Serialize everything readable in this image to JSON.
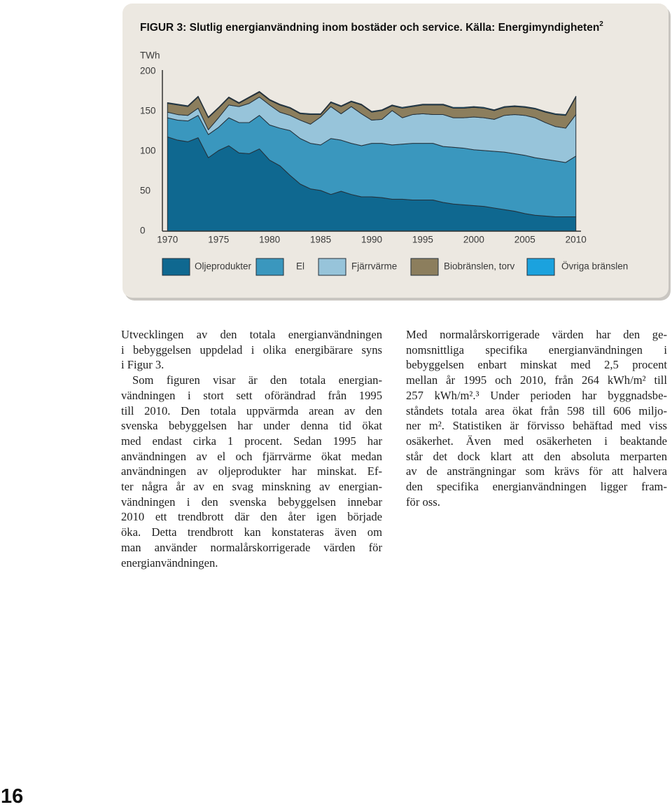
{
  "chart_data": {
    "type": "stacked-area",
    "title": "FIGUR 3: Slutlig energianvändning inom bostäder och service. Källa: Energimyndigheten",
    "title_ref": "2",
    "y_label": "TWh",
    "x": [
      1970,
      1971,
      1972,
      1973,
      1974,
      1975,
      1976,
      1977,
      1978,
      1979,
      1980,
      1981,
      1982,
      1983,
      1984,
      1985,
      1986,
      1987,
      1988,
      1989,
      1990,
      1991,
      1992,
      1993,
      1994,
      1995,
      1996,
      1997,
      1998,
      1999,
      2000,
      2001,
      2002,
      2003,
      2004,
      2005,
      2006,
      2007,
      2008,
      2009,
      2010
    ],
    "xlim": [
      1969.5,
      2010.5
    ],
    "xticks": [
      1970,
      1975,
      1980,
      1985,
      1990,
      1995,
      2000,
      2005,
      2010
    ],
    "ylim": [
      0,
      200
    ],
    "yticks": [
      0,
      50,
      100,
      150,
      200
    ],
    "legend": "bottom",
    "series": [
      {
        "name": "Oljeprodukter",
        "color": "#0f6890",
        "values": [
          118,
          114,
          112,
          117,
          92,
          101,
          107,
          98,
          97,
          103,
          89,
          82,
          70,
          59,
          53,
          51,
          46,
          50,
          46,
          43,
          43,
          42,
          40,
          40,
          39,
          39,
          39,
          36,
          34,
          33,
          32,
          31,
          29,
          27,
          25,
          22,
          20,
          19,
          18,
          18,
          18
        ]
      },
      {
        "name": "El",
        "color": "#3a97be",
        "values": [
          24,
          25,
          26,
          28,
          29,
          29,
          35,
          38,
          39,
          42,
          44,
          47,
          56,
          57,
          57,
          57,
          70,
          64,
          64,
          64,
          67,
          68,
          68,
          69,
          71,
          71,
          71,
          70,
          71,
          71,
          70,
          70,
          71,
          72,
          72,
          73,
          72,
          71,
          70,
          68,
          76
        ]
      },
      {
        "name": "Fjärrvärme",
        "color": "#97c4da",
        "values": [
          7,
          7,
          7,
          9,
          6,
          12,
          16,
          20,
          24,
          23,
          25,
          20,
          19,
          23,
          24,
          35,
          40,
          33,
          46,
          40,
          29,
          30,
          43,
          33,
          36,
          37,
          36,
          40,
          37,
          38,
          41,
          41,
          40,
          46,
          49,
          50,
          50,
          46,
          43,
          43,
          52
        ]
      },
      {
        "name": "Biobränslen, torv",
        "color": "#8c7e5d",
        "values": [
          11,
          12,
          11,
          14,
          15,
          12,
          9,
          4,
          7,
          6,
          6,
          9,
          9,
          8,
          12,
          3,
          5,
          9,
          6,
          11,
          10,
          11,
          6,
          12,
          10,
          11,
          12,
          12,
          12,
          12,
          12,
          12,
          11,
          10,
          10,
          10,
          11,
          13,
          15,
          16,
          22
        ]
      },
      {
        "name": "Övriga bränslen",
        "color": "#1ba2de",
        "values": [
          1,
          1,
          1,
          1,
          1,
          1,
          1,
          1,
          1,
          1,
          1,
          1,
          1,
          1,
          1,
          1,
          1,
          1,
          1,
          1,
          1,
          1,
          1,
          1,
          1,
          1,
          1,
          1,
          1,
          1,
          1,
          1,
          1,
          1,
          1,
          1,
          1,
          1,
          1,
          1,
          1
        ]
      }
    ]
  },
  "text": {
    "left_column": [
      [
        "Utvecklingen av den totala energianvändningen",
        "i bebyggelsen uppdelad i olika energibärare syns",
        "i Figur 3."
      ],
      [
        "Som figuren visar är den totala energian-",
        "vändningen i stort sett oförändrad från 1995",
        "till 2010. Den totala uppvärmda arean av den",
        "svenska bebyggelsen har under denna tid ökat",
        "med endast cirka 1 procent. Sedan 1995 har",
        "användningen av el och fjärrvärme ökat medan",
        "användningen av oljeprodukter har minskat. Ef-",
        "ter några år av en svag minskning av energian-",
        "vändningen i den svenska bebyggelsen innebar",
        "2010 ett trendbrott där den åter igen började",
        "öka. Detta trendbrott kan konstateras även om",
        "man använder normalårskorrigerade värden för",
        "energianvändningen."
      ]
    ],
    "right_column": [
      [
        "Med normalårskorrigerade värden har den ge-",
        "nomsnittliga specifika energianvändningen i",
        "bebyggelsen enbart minskat med 2,5 procent",
        "mellan år 1995 och 2010, från 264 kWh/m² till",
        "257 kWh/m².³ Under perioden har byggnadsbe-",
        "ståndets totala area ökat från 598 till 606 miljo-",
        "ner m². Statistiken är förvisso behäftad med viss",
        "osäkerhet. Även med osäkerheten i beaktande",
        "står det dock klart att den absoluta merparten",
        "av de ansträngningar som krävs för att halvera",
        "den specifika energianvändningen ligger fram-",
        "för oss."
      ]
    ]
  },
  "page_number": "16"
}
